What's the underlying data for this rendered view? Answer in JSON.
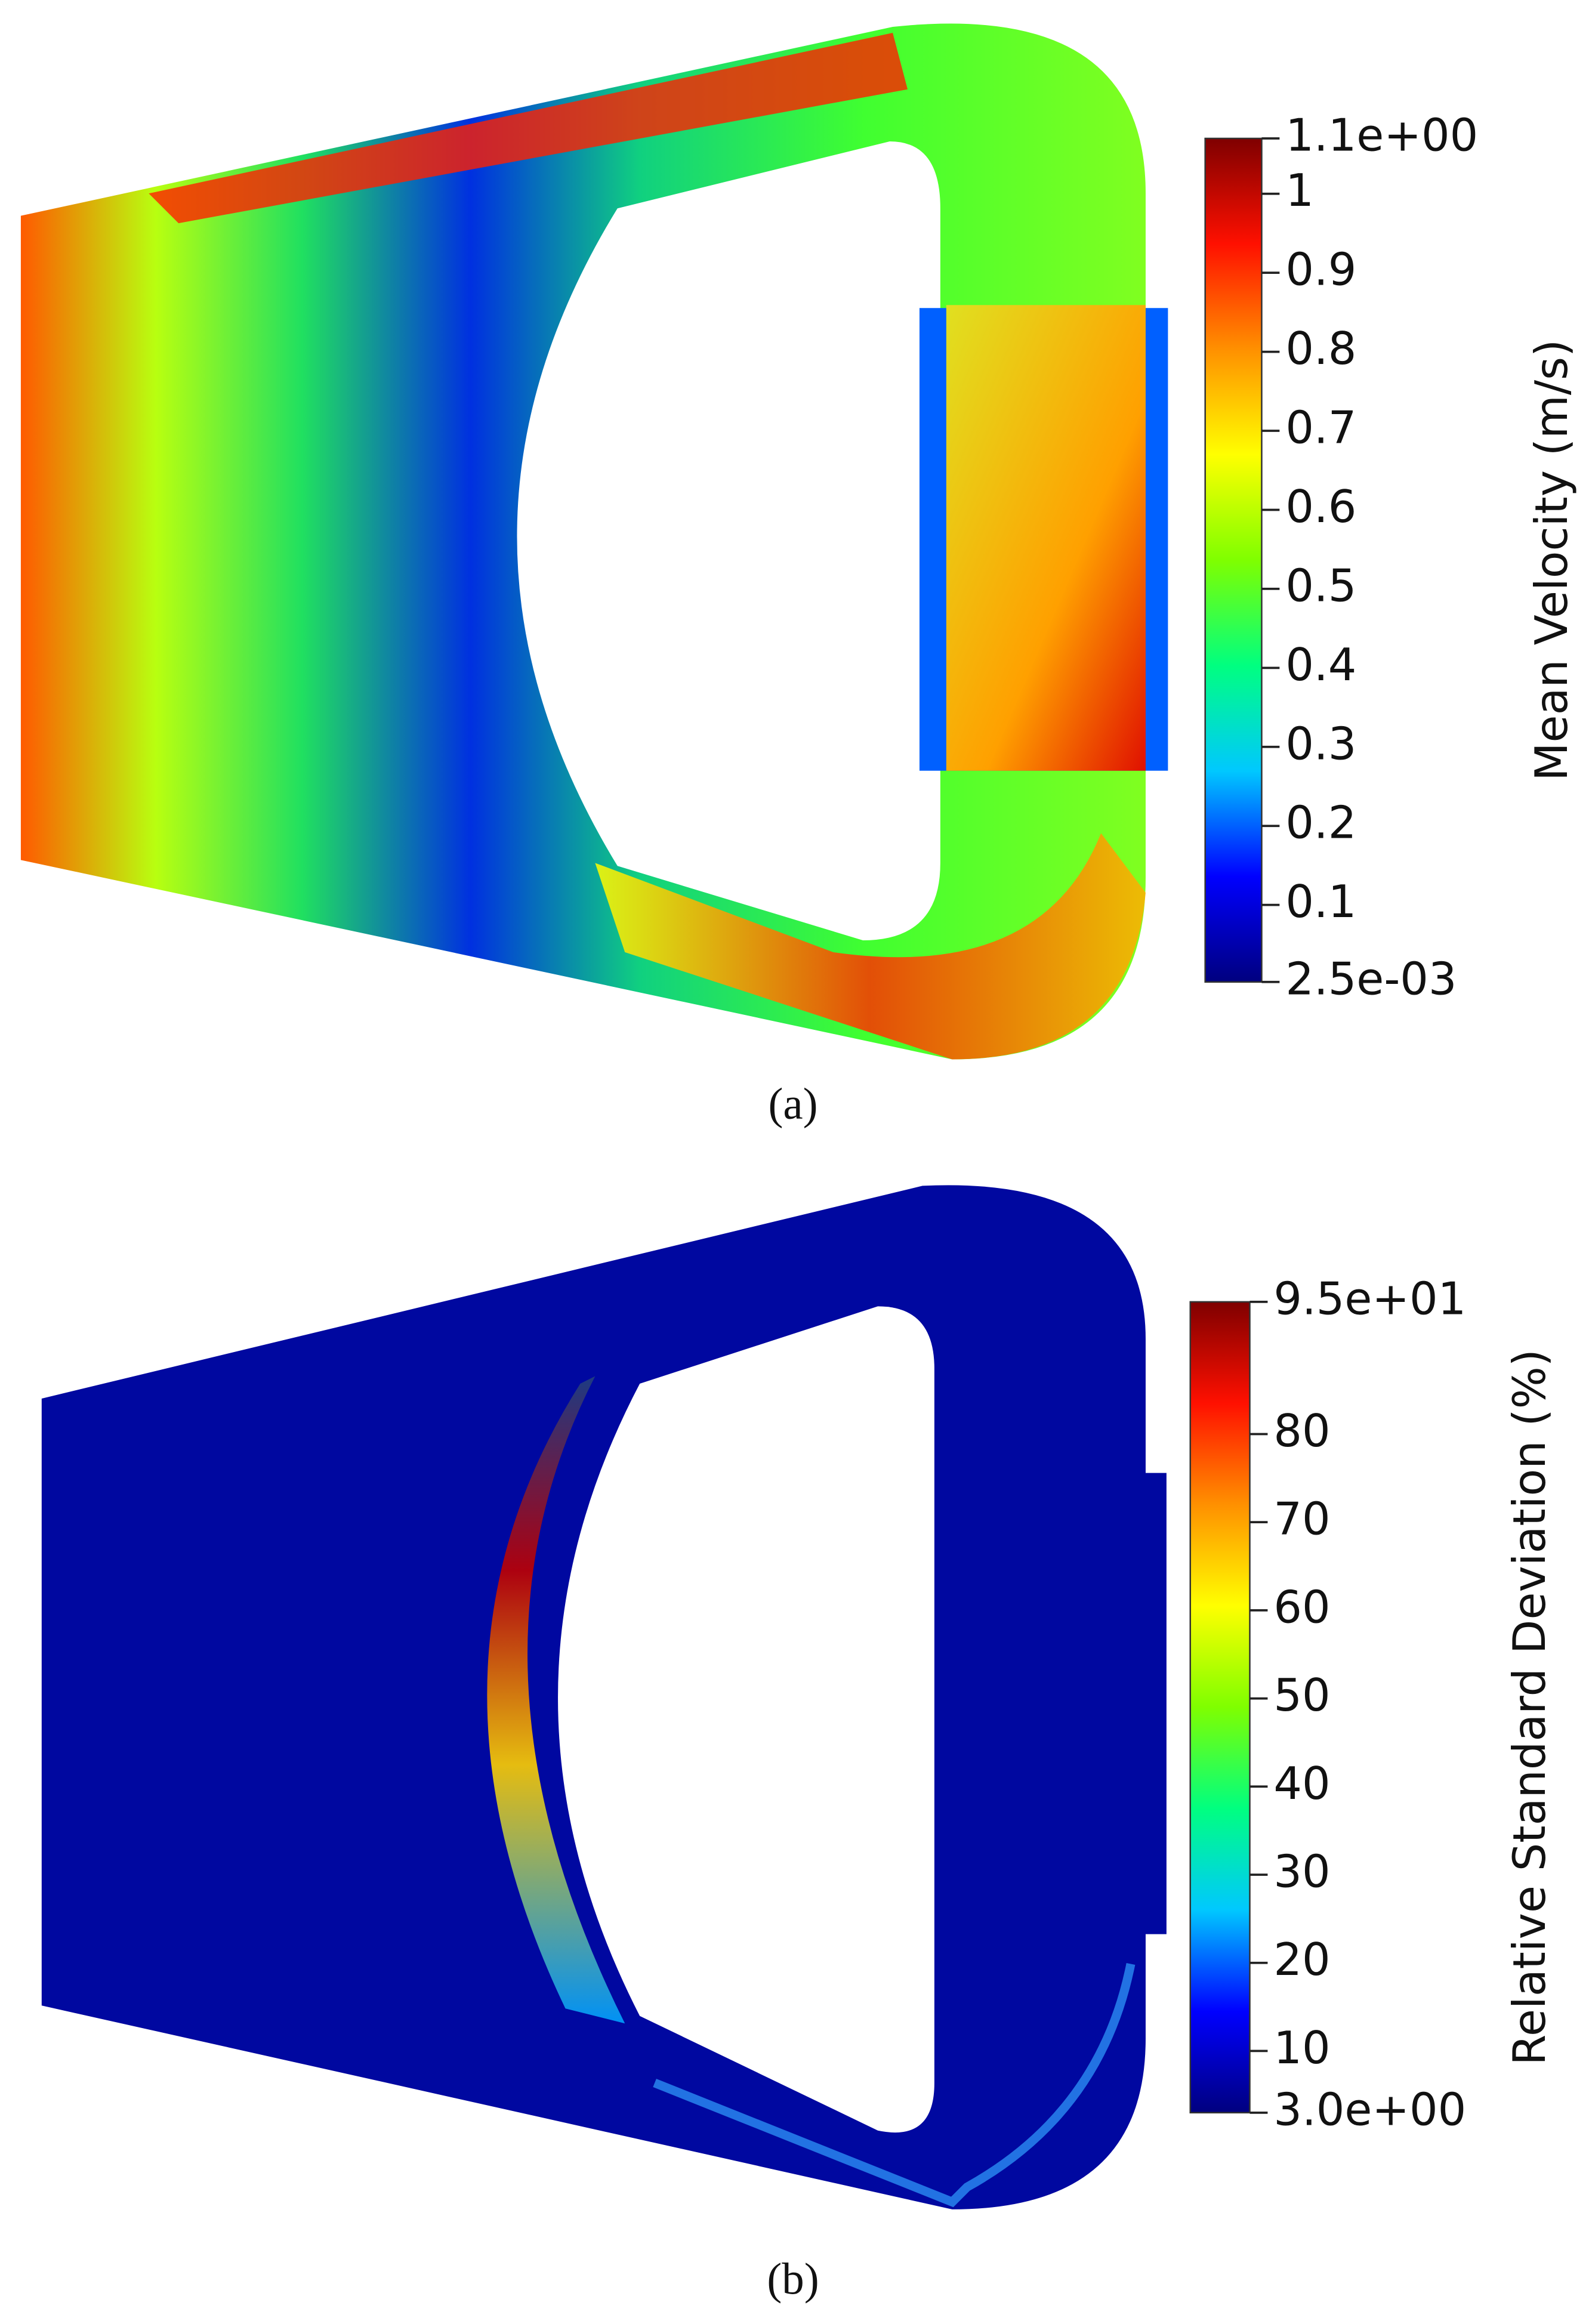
{
  "chart_data": [
    {
      "type": "contour",
      "caption": "(a)",
      "colorbar_label": "Mean Velocity (m/s)",
      "colormap": [
        "#00007f",
        "#0000ff",
        "#00c8ff",
        "#00ff80",
        "#7fff00",
        "#ffff00",
        "#ff9000",
        "#ff1000",
        "#7f0000"
      ],
      "ylim": [
        0.0025,
        1.07
      ],
      "yticks": [
        {
          "value": 0.0025,
          "label": "2.5e-03"
        },
        0.1,
        0.2,
        0.3,
        0.4,
        0.5,
        0.6,
        0.7,
        0.8,
        0.9,
        1,
        {
          "value": 1.07,
          "label": "1.1e+00"
        }
      ]
    },
    {
      "type": "contour",
      "caption": "(b)",
      "colorbar_label": "Relative Standard Deviation (%)",
      "colormap": [
        "#00007f",
        "#0000ff",
        "#00c8ff",
        "#00ff80",
        "#7fff00",
        "#ffff00",
        "#ff9000",
        "#ff1000",
        "#7f0000"
      ],
      "ylim": [
        3,
        95
      ],
      "yticks": [
        {
          "value": 3,
          "label": "3.0e+00"
        },
        10,
        20,
        30,
        40,
        50,
        60,
        70,
        80,
        {
          "value": 95,
          "label": "9.5e+01"
        }
      ]
    }
  ]
}
